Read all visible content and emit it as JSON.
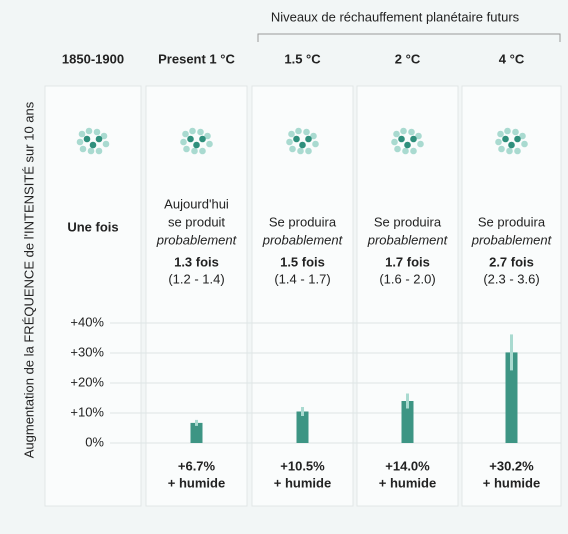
{
  "chart_data": {
    "type": "bar",
    "header": "Niveaux de réchauffement planétaire futurs",
    "ylabel": "Augmentation de la FRÉQUENCE de l'INTENSITÉ sur 10 ans",
    "categories": [
      "1850-1900",
      "Present 1 °C",
      "1.5 °C",
      "2 °C",
      "4 °C"
    ],
    "descriptions": [
      null,
      [
        "Aujourd'hui",
        "se produit",
        "probablement"
      ],
      [
        "Se produira",
        "probablement"
      ],
      [
        "Se produira",
        "probablement"
      ],
      [
        "Se produira",
        "probablement"
      ]
    ],
    "frequency": [
      "Une fois",
      "1.3 fois",
      "1.5 fois",
      "1.7 fois",
      "2.7 fois"
    ],
    "ranges": [
      null,
      "(1.2 - 1.4)",
      "(1.4 - 1.7)",
      "(1.6 - 2.0)",
      "(2.3 - 3.6)"
    ],
    "values": [
      null,
      6.7,
      10.5,
      14.0,
      30.2
    ],
    "value_labels": [
      null,
      "+6.7%",
      "+10.5%",
      "+14.0%",
      "+30.2%"
    ],
    "errors": [
      null,
      1,
      1.5,
      2.5,
      6
    ],
    "suffix": "+ humide",
    "color": "#3d9584",
    "ylim": [
      0,
      40
    ],
    "yticks": [
      {
        "value": 0,
        "label": "0%"
      },
      {
        "value": 10,
        "label": "+10%"
      },
      {
        "value": 20,
        "label": "+20%"
      },
      {
        "value": 30,
        "label": "+30%"
      },
      {
        "value": 40,
        "label": "+40%"
      }
    ],
    "grid": true
  }
}
